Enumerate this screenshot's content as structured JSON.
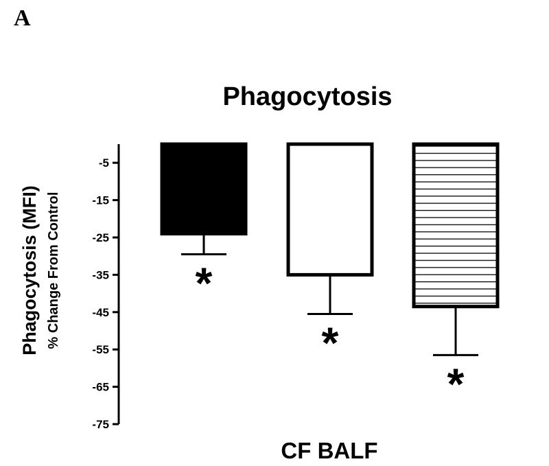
{
  "panel_label": "A",
  "colors": {
    "axis": "#000000",
    "bar1_fill": "#000000",
    "bar2_fill": "#ffffff",
    "bar3_fill": "#ffffff",
    "hatch": "#000000"
  },
  "chart_data": {
    "type": "bar",
    "title": "Phagocytosis",
    "ylabel_line1": "Phagocytosis (MFI)",
    "ylabel_line2": "% Change From Control",
    "xlabel": "CF BALF",
    "ylim": [
      -75,
      0
    ],
    "yticks": [
      -5,
      -15,
      -25,
      -35,
      -45,
      -55,
      -65,
      -75
    ],
    "ytick_labels": [
      "-5",
      "-15",
      "-25",
      "-35",
      "-45",
      "-55",
      "-65",
      "-75"
    ],
    "grid": false,
    "legend": false,
    "bars": [
      {
        "value": -24,
        "error": 5.5,
        "fill": "solid",
        "significance": "*"
      },
      {
        "value": -35,
        "error": 10.5,
        "fill": "open",
        "significance": "*"
      },
      {
        "value": -43.5,
        "error": 13,
        "fill": "hatched",
        "significance": "*"
      }
    ]
  }
}
